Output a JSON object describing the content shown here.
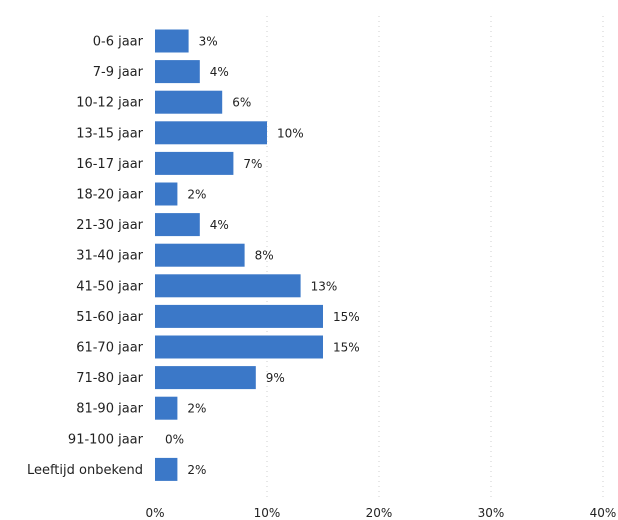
{
  "chart_data": {
    "type": "bar",
    "orientation": "horizontal",
    "categories": [
      "0-6 jaar",
      "7-9 jaar",
      "10-12 jaar",
      "13-15 jaar",
      "16-17 jaar",
      "18-20 jaar",
      "21-30 jaar",
      "31-40 jaar",
      "41-50 jaar",
      "51-60 jaar",
      "61-70 jaar",
      "71-80 jaar",
      "81-90 jaar",
      "91-100 jaar",
      "Leeftijd onbekend"
    ],
    "values": [
      3,
      4,
      6,
      10,
      7,
      2,
      4,
      8,
      13,
      15,
      15,
      9,
      2,
      0,
      2
    ],
    "value_labels": [
      "3%",
      "4%",
      "6%",
      "10%",
      "7%",
      "2%",
      "4%",
      "8%",
      "13%",
      "15%",
      "15%",
      "9%",
      "2%",
      "0%",
      "2%"
    ],
    "x_ticks": [
      0,
      10,
      20,
      30,
      40
    ],
    "x_tick_labels": [
      "0%",
      "10%",
      "20%",
      "30%",
      "40%"
    ],
    "xlim": [
      0,
      40
    ],
    "grid": "vertical-dotted",
    "legend": "none",
    "title": "",
    "xlabel": "",
    "ylabel": "",
    "bar_color": "#3b78c8"
  }
}
